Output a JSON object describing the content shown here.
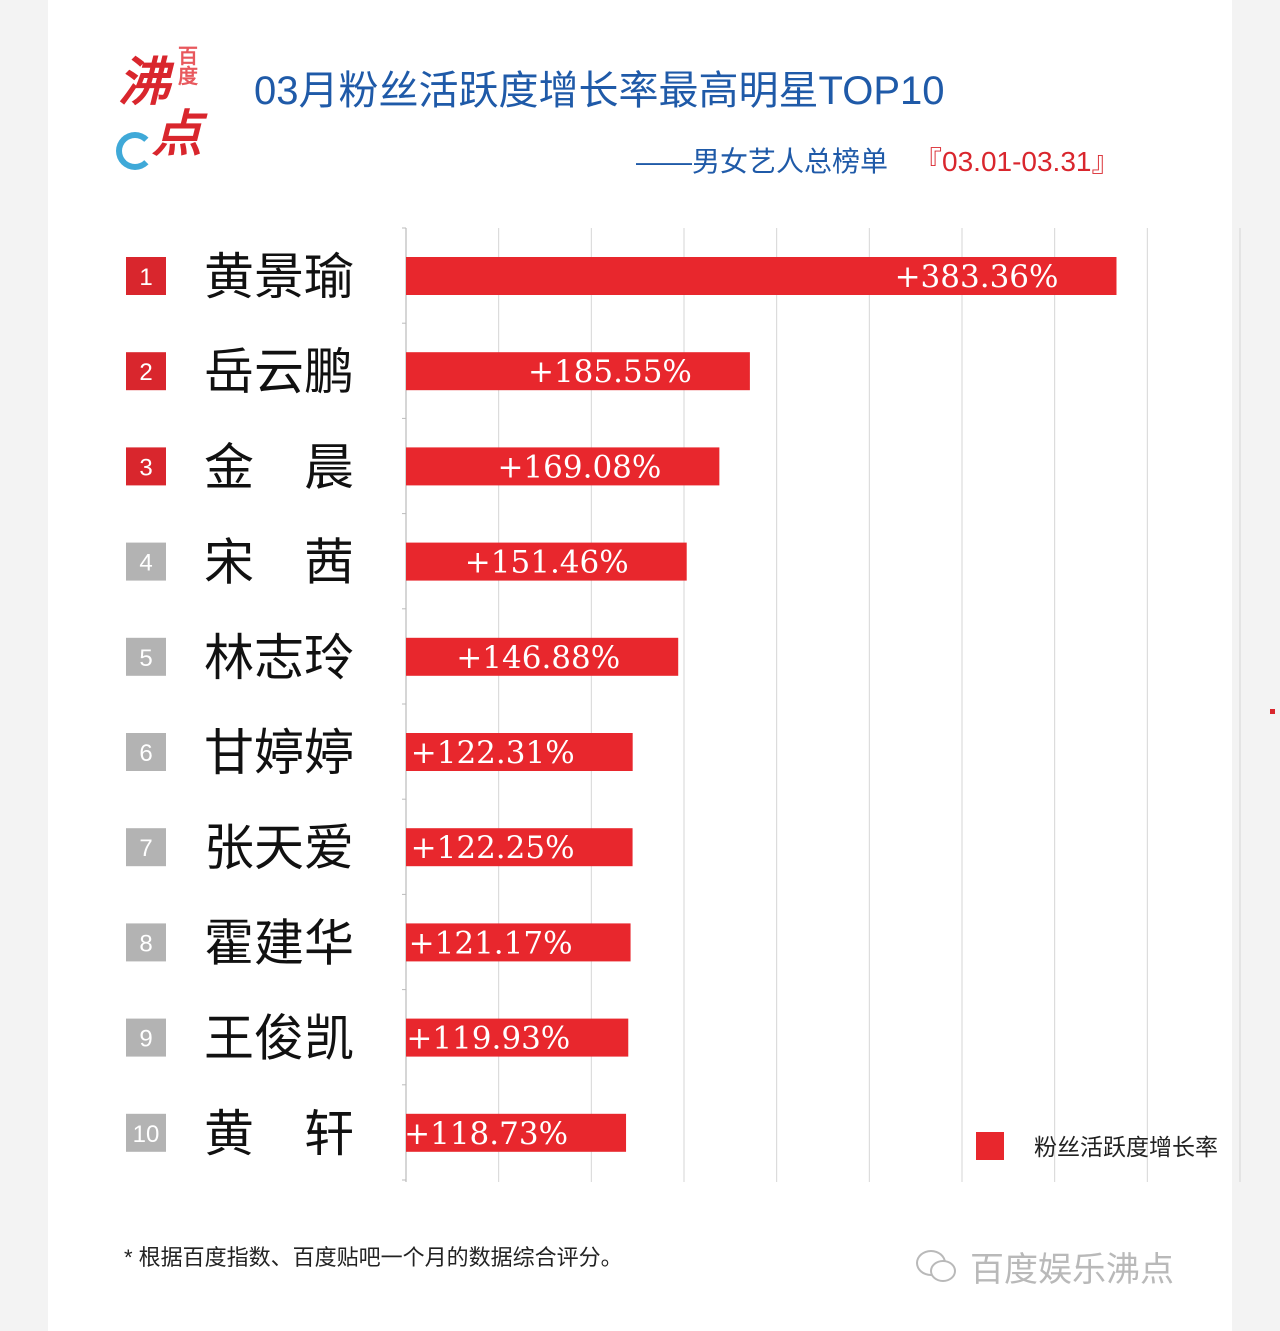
{
  "header": {
    "logo_text": "沸点",
    "logo_small": "百度",
    "title": "03月粉丝活跃度增长率最高明星TOP10",
    "subtitle": "——男女艺人总榜单",
    "date_range": "『03.01-03.31』"
  },
  "colors": {
    "bar": "#e8272d",
    "rank_top": "#d9262d",
    "rank_other": "#b3b3b3",
    "title": "#1f5aa8",
    "grid": "#d6d6d6"
  },
  "chart_data": {
    "type": "bar",
    "orientation": "horizontal",
    "ranks": [
      "1",
      "2",
      "3",
      "4",
      "5",
      "6",
      "7",
      "8",
      "9",
      "10"
    ],
    "categories": [
      "黄景瑜",
      "岳云鹏",
      "金　晨",
      "宋　茜",
      "林志玲",
      "甘婷婷",
      "张天爱",
      "霍建华",
      "王俊凯",
      "黄　轩"
    ],
    "series": [
      {
        "name": "粉丝活跃度增长率",
        "values": [
          383.36,
          185.55,
          169.08,
          151.46,
          146.88,
          122.31,
          122.25,
          121.17,
          119.93,
          118.73
        ],
        "labels": [
          "+383.36%",
          "+185.55%",
          "+169.08%",
          "+151.46%",
          "+146.88%",
          "+122.31%",
          "+122.25%",
          "+121.17%",
          "+119.93%",
          "+118.73%"
        ]
      }
    ],
    "xlim": [
      0,
      450
    ],
    "grid": true,
    "legend_position": "bottom-right",
    "highlighted_ranks": 3
  },
  "footnote": "* 根据百度指数、百度贴吧一个月的数据综合评分。",
  "watermark": "百度娱乐沸点"
}
